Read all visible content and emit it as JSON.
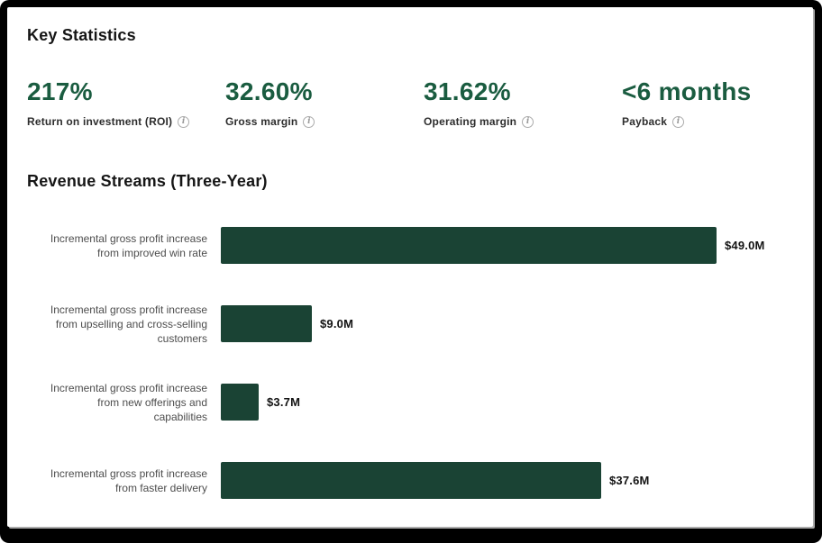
{
  "colors": {
    "frame_black": "#000000",
    "card_white": "#ffffff",
    "stat_value_green": "#1a5c40",
    "bar_green": "#1a4334",
    "heading_black": "#161616",
    "stat_label_gray": "#2d2d2d",
    "category_label_gray": "#4d4d4d",
    "info_icon_gray": "#9a9a9a"
  },
  "key_statistics": {
    "title": "Key Statistics",
    "info_icon_glyph": "i",
    "stats": [
      {
        "id": "roi",
        "value": "217%",
        "label": "Return on investment (ROI)"
      },
      {
        "id": "gross-margin",
        "value": "32.60%",
        "label": "Gross margin"
      },
      {
        "id": "operating-margin",
        "value": "31.62%",
        "label": "Operating margin"
      },
      {
        "id": "payback",
        "value": "<6 months",
        "label": "Payback"
      }
    ]
  },
  "chart_data": {
    "type": "bar",
    "orientation": "horizontal",
    "title": "Revenue Streams (Three-Year)",
    "categories": [
      "Incremental gross profit increase from improved win rate",
      "Incremental gross profit increase from upselling and cross-selling customers",
      "Incremental gross profit increase from new offerings and capabilities",
      "Incremental gross profit increase from faster delivery"
    ],
    "category_lines": [
      [
        "Incremental gross profit increase",
        "from improved win rate"
      ],
      [
        "Incremental gross profit increase",
        "from upselling and cross-selling",
        "customers"
      ],
      [
        "Incremental gross profit increase",
        "from new offerings and",
        "capabilities"
      ],
      [
        "Incremental gross profit increase",
        "from faster delivery"
      ]
    ],
    "values": [
      49.0,
      9.0,
      3.7,
      37.6
    ],
    "value_labels": [
      "$49.0M",
      "$9.0M",
      "$3.7M",
      "$37.6M"
    ],
    "xlim": [
      0,
      49
    ],
    "grid": false,
    "legend": false,
    "bar_color": "#1a4334"
  }
}
